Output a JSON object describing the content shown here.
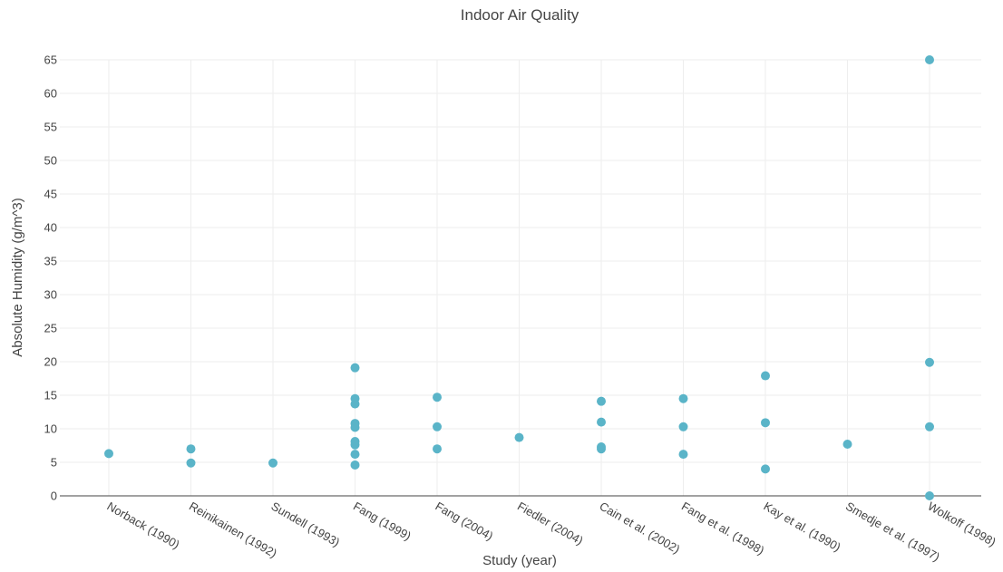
{
  "chart_data": {
    "type": "scatter",
    "title": "Indoor Air Quality",
    "xlabel": "Study (year)",
    "ylabel": "Absolute Humidity (g/m^3)",
    "ylim": [
      0,
      65
    ],
    "yticks": [
      0,
      5,
      10,
      15,
      20,
      25,
      30,
      35,
      40,
      45,
      50,
      55,
      60,
      65
    ],
    "grid": true,
    "marker_color": "#5ab4c8",
    "categories": [
      "Norback (1990)",
      "Reinikainen (1992)",
      "Sundell (1993)",
      "Fang (1999)",
      "Fang (2004)",
      "Fiedler (2004)",
      "Cain et al. (2002)",
      "Fang et al. (1998)",
      "Kay et al. (1990)",
      "Smedje et al. (1997)",
      "Wolkoff (1998)"
    ],
    "points": [
      {
        "x": "Norback (1990)",
        "y": 6.3
      },
      {
        "x": "Reinikainen (1992)",
        "y": 7.0
      },
      {
        "x": "Reinikainen (1992)",
        "y": 4.9
      },
      {
        "x": "Sundell (1993)",
        "y": 4.9
      },
      {
        "x": "Fang (1999)",
        "y": 19.1
      },
      {
        "x": "Fang (1999)",
        "y": 14.5
      },
      {
        "x": "Fang (1999)",
        "y": 13.7
      },
      {
        "x": "Fang (1999)",
        "y": 10.8
      },
      {
        "x": "Fang (1999)",
        "y": 10.2
      },
      {
        "x": "Fang (1999)",
        "y": 8.1
      },
      {
        "x": "Fang (1999)",
        "y": 7.6
      },
      {
        "x": "Fang (1999)",
        "y": 6.2
      },
      {
        "x": "Fang (1999)",
        "y": 4.6
      },
      {
        "x": "Fang (2004)",
        "y": 14.7
      },
      {
        "x": "Fang (2004)",
        "y": 10.3
      },
      {
        "x": "Fang (2004)",
        "y": 7.0
      },
      {
        "x": "Fiedler (2004)",
        "y": 8.7
      },
      {
        "x": "Cain et al. (2002)",
        "y": 14.1
      },
      {
        "x": "Cain et al. (2002)",
        "y": 11.0
      },
      {
        "x": "Cain et al. (2002)",
        "y": 7.3
      },
      {
        "x": "Cain et al. (2002)",
        "y": 7.0
      },
      {
        "x": "Fang et al. (1998)",
        "y": 14.5
      },
      {
        "x": "Fang et al. (1998)",
        "y": 10.3
      },
      {
        "x": "Fang et al. (1998)",
        "y": 6.2
      },
      {
        "x": "Kay et al. (1990)",
        "y": 17.9
      },
      {
        "x": "Kay et al. (1990)",
        "y": 10.9
      },
      {
        "x": "Kay et al. (1990)",
        "y": 4.0
      },
      {
        "x": "Smedje et al. (1997)",
        "y": 7.7
      },
      {
        "x": "Wolkoff (1998)",
        "y": 65.0
      },
      {
        "x": "Wolkoff (1998)",
        "y": 19.9
      },
      {
        "x": "Wolkoff (1998)",
        "y": 10.3
      },
      {
        "x": "Wolkoff (1998)",
        "y": 0.0
      }
    ]
  }
}
